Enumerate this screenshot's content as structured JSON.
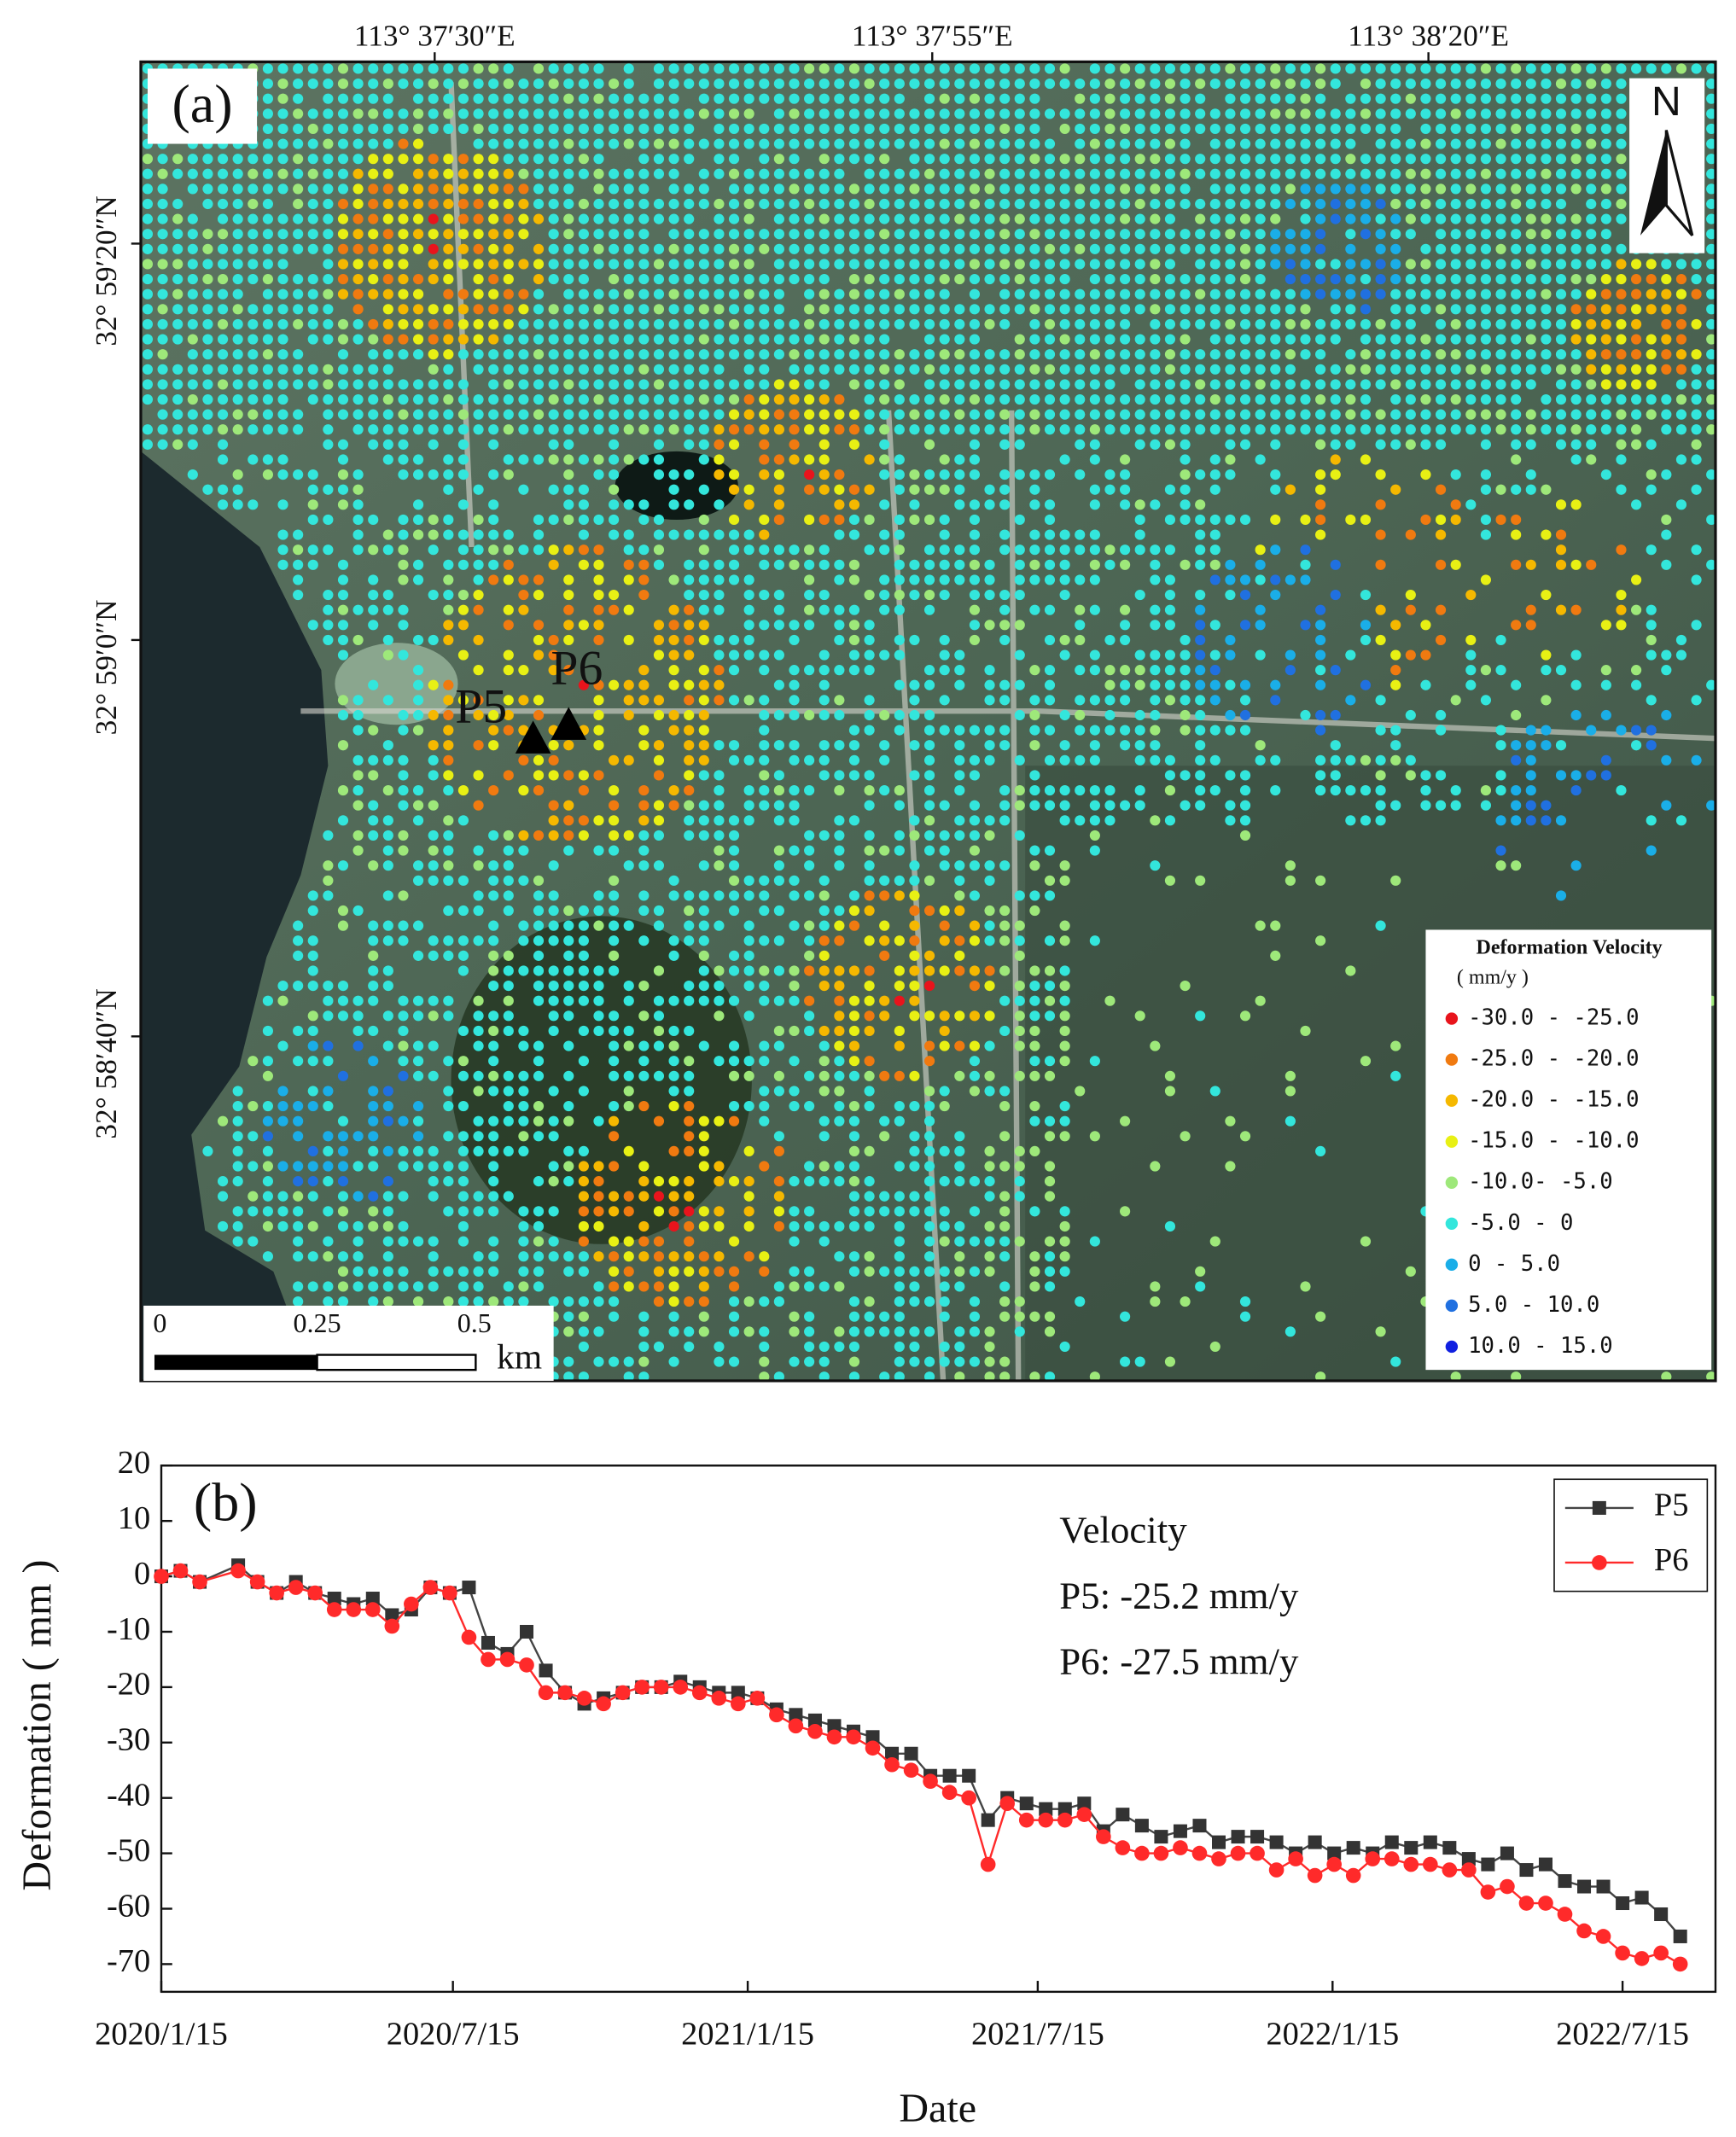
{
  "map": {
    "panel_label": "(a)",
    "north": "N",
    "lon_labels": [
      "113°  37′30″E",
      "113°  37′55″E",
      "113°  38′20″E"
    ],
    "lat_labels": [
      "32°  59′20″N",
      "32°  59′0″N",
      "32°  58′40″N"
    ],
    "points": [
      "P5",
      "P6"
    ],
    "scale_bar": {
      "labels": [
        "0",
        "0.25",
        "0.5"
      ],
      "unit": "km"
    },
    "legend": {
      "title": "Deformation Velocity",
      "unit": "( mm/y )",
      "items": [
        {
          "label": "-30.0 - -25.0",
          "color": "#e8141c"
        },
        {
          "label": "-25.0 - -20.0",
          "color": "#f07a10"
        },
        {
          "label": "-20.0 - -15.0",
          "color": "#f5b800"
        },
        {
          "label": "-15.0 - -10.0",
          "color": "#e8f014"
        },
        {
          "label": "-10.0- -5.0",
          "color": "#9ee87a"
        },
        {
          "label": "-5.0 - 0",
          "color": "#33e6dc"
        },
        {
          "label": "0 - 5.0",
          "color": "#1aaee8"
        },
        {
          "label": "5.0 - 10.0",
          "color": "#2070e0"
        },
        {
          "label": "10.0 - 15.0",
          "color": "#1020e0"
        }
      ]
    }
  },
  "chart_data": {
    "type": "line",
    "panel_label": "(b)",
    "x_label": "Date",
    "y_label": "Deformation ( mm )",
    "annotations": [
      "Velocity",
      "P5: -25.2 mm/y",
      "P6: -27.5 mm/y"
    ],
    "x": [
      "2020/1/15",
      "2020/1/27",
      "2020/2/8",
      "2020/3/3",
      "2020/3/15",
      "2020/3/27",
      "2020/4/8",
      "2020/4/20",
      "2020/5/2",
      "2020/5/14",
      "2020/5/26",
      "2020/6/7",
      "2020/6/19",
      "2020/7/1",
      "2020/7/13",
      "2020/7/25",
      "2020/8/6",
      "2020/8/18",
      "2020/8/30",
      "2020/9/11",
      "2020/9/23",
      "2020/10/5",
      "2020/10/17",
      "2020/10/29",
      "2020/11/10",
      "2020/11/22",
      "2020/12/4",
      "2020/12/16",
      "2020/12/28",
      "2021/1/9",
      "2021/1/21",
      "2021/2/2",
      "2021/2/14",
      "2021/2/26",
      "2021/3/10",
      "2021/3/22",
      "2021/4/3",
      "2021/4/15",
      "2021/4/27",
      "2021/5/9",
      "2021/5/21",
      "2021/6/2",
      "2021/6/14",
      "2021/6/26",
      "2021/7/8",
      "2021/7/20",
      "2021/8/1",
      "2021/8/13",
      "2021/8/25",
      "2021/9/6",
      "2021/9/18",
      "2021/9/30",
      "2021/10/12",
      "2021/10/24",
      "2021/11/5",
      "2021/11/17",
      "2021/11/29",
      "2021/12/11",
      "2021/12/23",
      "2022/1/4",
      "2022/1/16",
      "2022/1/28",
      "2022/2/9",
      "2022/2/21",
      "2022/3/5",
      "2022/3/17",
      "2022/3/29",
      "2022/4/10",
      "2022/4/22",
      "2022/5/4",
      "2022/5/16",
      "2022/5/28",
      "2022/6/9",
      "2022/6/21",
      "2022/7/3",
      "2022/7/15",
      "2022/7/27",
      "2022/8/8",
      "2022/8/20"
    ],
    "series": [
      {
        "name": "P5",
        "color": "#444444",
        "marker_color": "#333333",
        "marker": "square",
        "values": [
          0,
          1,
          -1,
          2,
          -1,
          -3,
          -1,
          -3,
          -4,
          -5,
          -4,
          -7,
          -6,
          -2,
          -3,
          -2,
          -12,
          -14,
          -10,
          -17,
          -21,
          -23,
          -22,
          -21,
          -20,
          -20,
          -19,
          -20,
          -21,
          -21,
          -22,
          -24,
          -25,
          -26,
          -27,
          -28,
          -29,
          -32,
          -32,
          -36,
          -36,
          -36,
          -44,
          -40,
          -41,
          -42,
          -42,
          -41,
          -46,
          -43,
          -45,
          -47,
          -46,
          -45,
          -48,
          -47,
          -47,
          -48,
          -50,
          -48,
          -50,
          -49,
          -50,
          -48,
          -49,
          -48,
          -49,
          -51,
          -52,
          -50,
          -53,
          -52,
          -55,
          -56,
          -56,
          -59,
          -58,
          -61,
          -65
        ]
      },
      {
        "name": "P6",
        "color": "#ff2a2a",
        "marker_color": "#ff2a2a",
        "marker": "circle",
        "values": [
          0,
          1,
          -1,
          1,
          -1,
          -3,
          -2,
          -3,
          -6,
          -6,
          -6,
          -9,
          -5,
          -2,
          -3,
          -11,
          -15,
          -15,
          -16,
          -21,
          -21,
          -22,
          -23,
          -21,
          -20,
          -20,
          -20,
          -21,
          -22,
          -23,
          -22,
          -25,
          -27,
          -28,
          -29,
          -29,
          -31,
          -34,
          -35,
          -37,
          -39,
          -40,
          -52,
          -41,
          -44,
          -44,
          -44,
          -43,
          -47,
          -49,
          -50,
          -50,
          -49,
          -50,
          -51,
          -50,
          -50,
          -53,
          -51,
          -54,
          -52,
          -54,
          -51,
          -51,
          -52,
          -52,
          -53,
          -53,
          -57,
          -56,
          -59,
          -59,
          -61,
          -64,
          -65,
          -68,
          -69,
          -68,
          -70
        ]
      }
    ],
    "xlim": [
      "2020/1/15",
      "2022/9/11"
    ],
    "xticks": [
      "2020/1/15",
      "2020/7/15",
      "2021/1/15",
      "2021/7/15",
      "2022/1/15",
      "2022/7/15"
    ],
    "ylim": [
      -75,
      20
    ],
    "yticks": [
      20,
      10,
      0,
      -10,
      -20,
      -30,
      -40,
      -50,
      -60,
      -70
    ],
    "legend": "upper right"
  }
}
